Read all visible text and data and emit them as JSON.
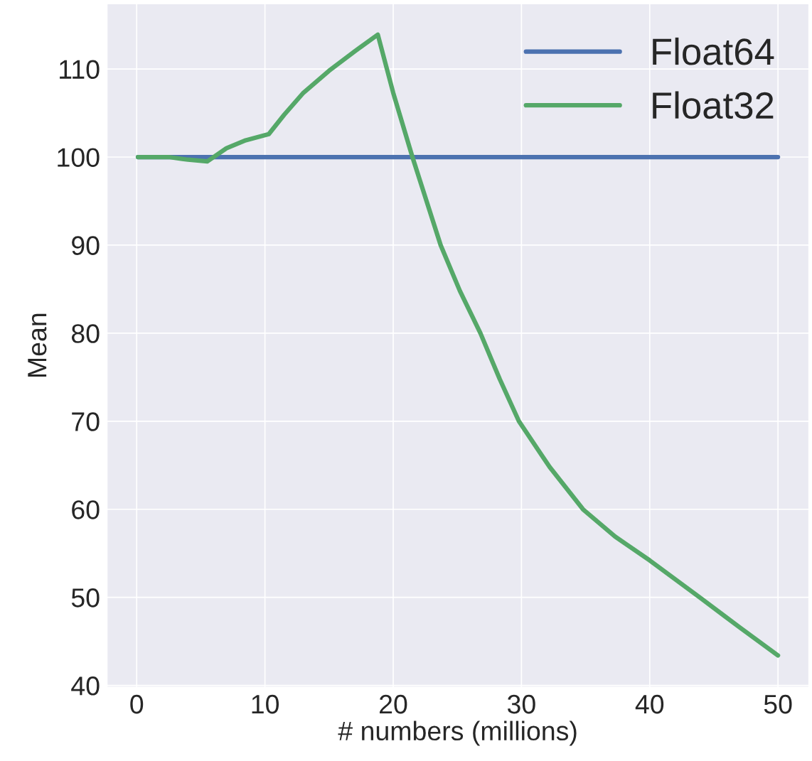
{
  "chart_data": {
    "type": "line",
    "xlabel": "# numbers (millions)",
    "ylabel": "Mean",
    "xlim": [
      -2.3,
      52.4
    ],
    "ylim": [
      39.8,
      117.4
    ],
    "xticks": [
      0,
      10,
      20,
      30,
      40,
      50
    ],
    "yticks": [
      40,
      50,
      60,
      70,
      80,
      90,
      100,
      110
    ],
    "grid": true,
    "legend": "top right",
    "line_style": "solid",
    "marker": "none",
    "series": [
      {
        "name": "Float64",
        "color": "#4c72b0",
        "x": [
          0.1,
          50
        ],
        "values": [
          100,
          100
        ]
      },
      {
        "name": "Float32",
        "color": "#55a868",
        "x": [
          0.1,
          2.5,
          4,
          5.5,
          7,
          8.5,
          10.3,
          11.5,
          13,
          15,
          17,
          18.8,
          20,
          21.5,
          23.7,
          25.2,
          26.8,
          28.3,
          29.8,
          32.2,
          34.8,
          37.3,
          40,
          43.9,
          47,
          50
        ],
        "values": [
          100,
          100,
          99.7,
          99.5,
          101,
          101.9,
          102.6,
          104.8,
          107.3,
          109.8,
          112,
          113.9,
          107.3,
          100,
          90,
          84.8,
          80,
          74.8,
          70,
          64.8,
          60,
          56.9,
          54.2,
          50,
          46.6,
          43.4
        ]
      }
    ]
  }
}
